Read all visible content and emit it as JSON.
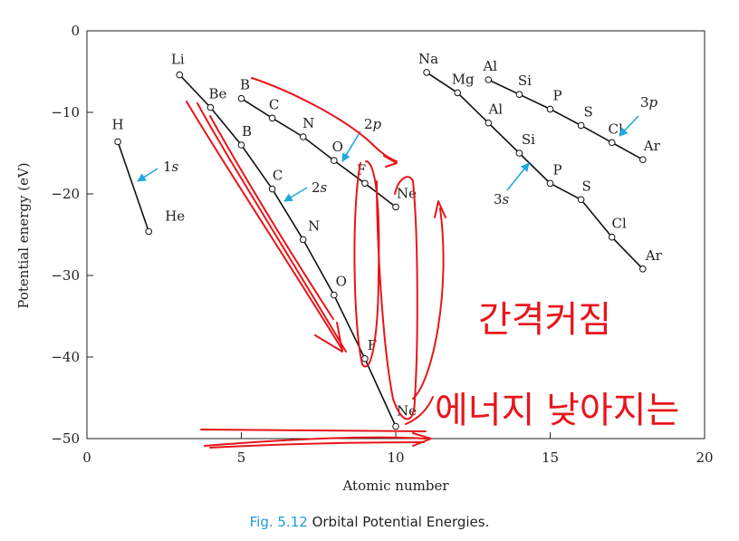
{
  "chart_data": {
    "type": "line",
    "xlabel": "Atomic number",
    "ylabel": "Potential energy (eV)",
    "xlim": [
      0,
      20
    ],
    "ylim": [
      -50,
      0
    ],
    "x_ticks": [
      0,
      5,
      10,
      15,
      20
    ],
    "y_ticks": [
      0,
      -10,
      -20,
      -30,
      -40,
      -50
    ],
    "series": [
      {
        "name": "1s",
        "points": [
          {
            "label": "H",
            "x": 1,
            "y": -13.6
          },
          {
            "label": "He",
            "x": 2,
            "y": -24.6
          }
        ]
      },
      {
        "name": "2s",
        "points": [
          {
            "label": "Li",
            "x": 3,
            "y": -5.4
          },
          {
            "label": "Be",
            "x": 4,
            "y": -9.4
          },
          {
            "label": "B",
            "x": 5,
            "y": -14.0
          },
          {
            "label": "C",
            "x": 6,
            "y": -19.4
          },
          {
            "label": "N",
            "x": 7,
            "y": -25.6
          },
          {
            "label": "O",
            "x": 8,
            "y": -32.4
          },
          {
            "label": "F",
            "x": 9,
            "y": -40.2
          },
          {
            "label": "Ne",
            "x": 10,
            "y": -48.5
          }
        ]
      },
      {
        "name": "2p",
        "points": [
          {
            "label": "B",
            "x": 5,
            "y": -8.3
          },
          {
            "label": "C",
            "x": 6,
            "y": -10.7
          },
          {
            "label": "N",
            "x": 7,
            "y": -13.0
          },
          {
            "label": "O",
            "x": 8,
            "y": -15.9
          },
          {
            "label": "F",
            "x": 9,
            "y": -18.7
          },
          {
            "label": "Ne",
            "x": 10,
            "y": -21.6
          }
        ]
      },
      {
        "name": "3s",
        "points": [
          {
            "label": "Na",
            "x": 11,
            "y": -5.1
          },
          {
            "label": "Mg",
            "x": 12,
            "y": -7.6
          },
          {
            "label": "Al",
            "x": 13,
            "y": -11.3
          },
          {
            "label": "Si",
            "x": 14,
            "y": -15.0
          },
          {
            "label": "P",
            "x": 15,
            "y": -18.7
          },
          {
            "label": "S",
            "x": 16,
            "y": -20.7
          },
          {
            "label": "Cl",
            "x": 17,
            "y": -25.3
          },
          {
            "label": "Ar",
            "x": 18,
            "y": -29.2
          }
        ]
      },
      {
        "name": "3p",
        "points": [
          {
            "label": "Al",
            "x": 13,
            "y": -6.0
          },
          {
            "label": "Si",
            "x": 14,
            "y": -7.8
          },
          {
            "label": "P",
            "x": 15,
            "y": -9.6
          },
          {
            "label": "S",
            "x": 16,
            "y": -11.6
          },
          {
            "label": "Cl",
            "x": 17,
            "y": -13.7
          },
          {
            "label": "Ar",
            "x": 18,
            "y": -15.8
          }
        ]
      }
    ],
    "handwritten_annotations": [
      "간격커짐",
      "에너지 낮아지는"
    ]
  },
  "caption": {
    "fig_num": "Fig. 5.12",
    "text": "Orbital Potential Energies."
  },
  "colors": {
    "axis": "#222222",
    "line": "#111111",
    "marker_fill": "#ffffff",
    "label_arrow": "#1fa8e0",
    "annotation": "#e8151b",
    "caption_num": "#1d9bd8"
  }
}
